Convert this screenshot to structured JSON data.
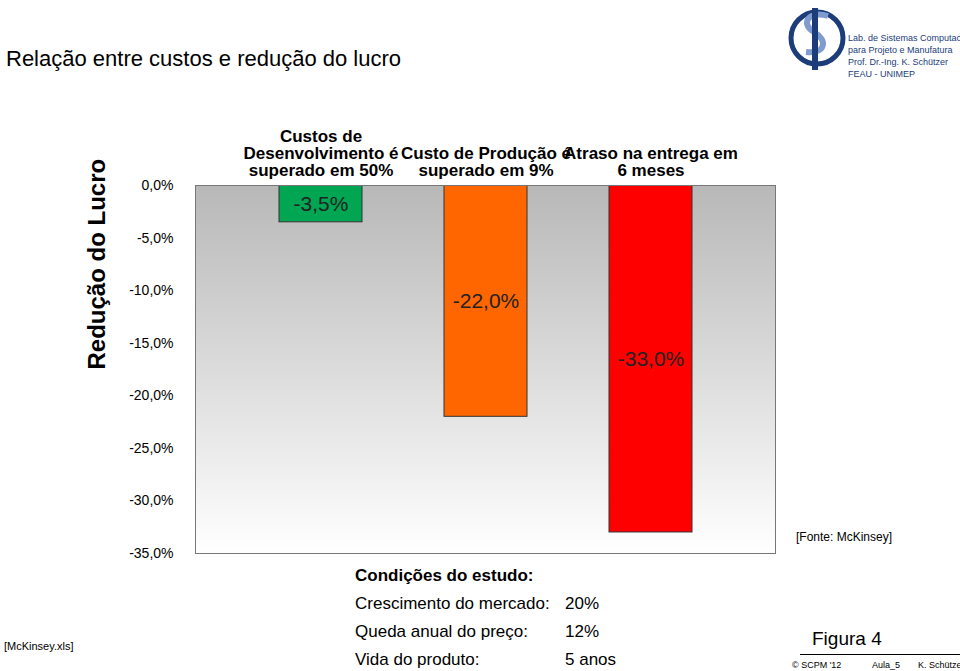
{
  "chart_data": {
    "type": "bar",
    "title": "Relação entre custos e redução do lucro",
    "ylabel": "Redução do Lucro",
    "categories": [
      "Custos de\nDesenvolvimento é\nsuperado em 50%",
      "Custo de Produção é\nsuperado em 9%",
      "Atraso na entrega em\n6 meses"
    ],
    "values": [
      -3.5,
      -22,
      -33
    ],
    "value_labels": [
      "-3,5%",
      "-22,0%",
      "-33,0%"
    ],
    "colors": [
      "#00a651",
      "#ff6600",
      "#ff0000"
    ],
    "ylim": [
      -35,
      0
    ],
    "yticks": [
      {
        "value": 0,
        "label": "0,0%"
      },
      {
        "value": -5,
        "label": "-5,0%"
      },
      {
        "value": -10,
        "label": "-10,0%"
      },
      {
        "value": -15,
        "label": "-15,0%"
      },
      {
        "value": -20,
        "label": "-20,0%"
      },
      {
        "value": -25,
        "label": "-25,0%"
      },
      {
        "value": -30,
        "label": "-30,0%"
      },
      {
        "value": -35,
        "label": "-35,0%"
      }
    ],
    "data_labels": true,
    "grid": false,
    "annotations": {
      "header": [
        "Lab. de Sistemas Computacionais",
        "para Projeto e Manufatura",
        "Prof. Dr.-Ing. K. Schützer",
        "FEAU - UNIMEP"
      ],
      "study_conditions": {
        "title": "Condições do estudo:",
        "rows": [
          [
            "Crescimento do mercado:",
            "20%"
          ],
          [
            "Queda anual do preço:",
            "12%"
          ],
          [
            "Vida do produto:",
            "5 anos"
          ]
        ]
      },
      "source": "[Fonte: McKinsey]",
      "file": "[McKinsey.xls]",
      "figure": "Figura 4",
      "footer": [
        "© SCPM '12",
        "Aula_5",
        "K. Schützer"
      ]
    }
  }
}
